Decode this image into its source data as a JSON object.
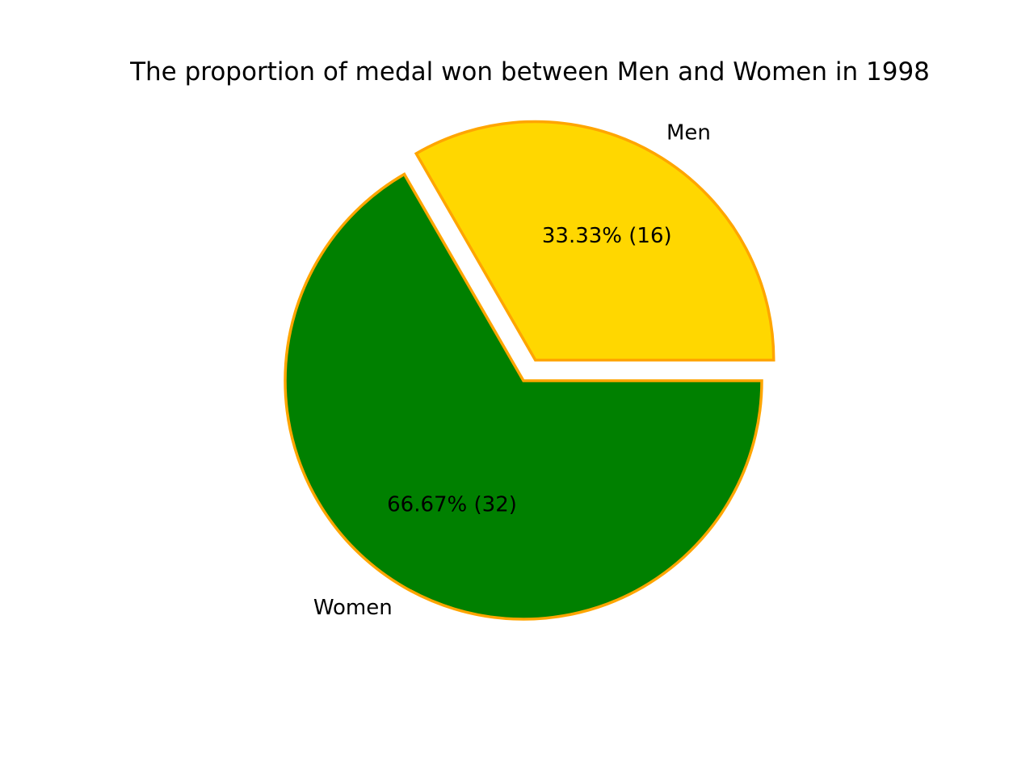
{
  "chart_data": {
    "type": "pie",
    "title": "The proportion of medal won between Men and Women in 1998",
    "start_angle_deg": 0,
    "direction": "counterclockwise",
    "edge_color": "#FFA500",
    "slices": [
      {
        "label": "Men",
        "value": 16,
        "percent_text": "33.33%  (16)",
        "color": "#FFD700",
        "exploded": true
      },
      {
        "label": "Women",
        "value": 32,
        "percent_text": "66.67%  (32)",
        "color": "#008000",
        "exploded": false
      }
    ]
  }
}
